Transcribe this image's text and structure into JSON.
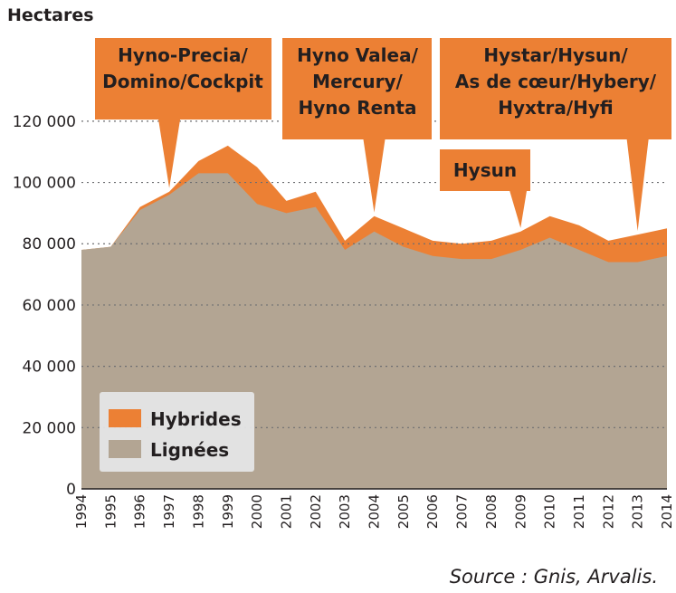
{
  "chart_data": {
    "type": "area",
    "stacked": true,
    "ylabel": "Hectares",
    "source": "Source : Gnis, Arvalis.",
    "ylim": [
      0,
      130000
    ],
    "yticks": [
      0,
      20000,
      40000,
      60000,
      80000,
      100000,
      120000
    ],
    "ytick_labels": [
      "0",
      "20 000",
      "40 000",
      "60 000",
      "80 000",
      "100 000",
      "120 000"
    ],
    "grid": "dotted horizontal",
    "x": [
      1994,
      1995,
      1996,
      1997,
      1998,
      1999,
      2000,
      2001,
      2002,
      2003,
      2004,
      2005,
      2006,
      2007,
      2008,
      2009,
      2010,
      2011,
      2012,
      2013,
      2014
    ],
    "series": [
      {
        "name": "Lignées",
        "color": "#b3a593",
        "values": [
          78000,
          79000,
          91000,
          96000,
          103000,
          103000,
          93000,
          90000,
          92000,
          78000,
          84000,
          79000,
          76000,
          75000,
          75000,
          78000,
          82000,
          78000,
          74000,
          74000,
          76000
        ]
      },
      {
        "name": "Hybrides",
        "color": "#ec8034",
        "values": [
          0,
          0,
          1000,
          1000,
          4000,
          9000,
          12000,
          4000,
          5000,
          3000,
          5000,
          6000,
          5000,
          5000,
          6000,
          6000,
          7000,
          8000,
          7000,
          9000,
          9000
        ]
      }
    ],
    "legend": {
      "position": "bottom-left",
      "items": [
        "Hybrides",
        "Lignées"
      ]
    },
    "annotations": [
      {
        "lines": [
          "Hyno-Precia/",
          "Domino/Cockpit"
        ],
        "year": 1997
      },
      {
        "lines": [
          "Hyno Valea/",
          "Mercury/",
          "Hyno Renta"
        ],
        "year": 2004
      },
      {
        "lines": [
          "Hysun"
        ],
        "year": 2009
      },
      {
        "lines": [
          "Hystar/Hysun/",
          "As de cœur/Hybery/",
          "Hyxtra/Hyfi"
        ],
        "year": 2013
      }
    ]
  }
}
